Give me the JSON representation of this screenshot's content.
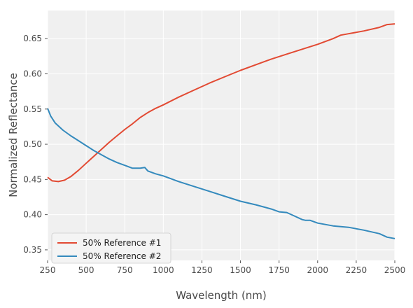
{
  "chart_data": {
    "type": "line",
    "title": "",
    "xlabel": "Wavelength (nm)",
    "ylabel": "Normalized Reflectance",
    "xlim": [
      250,
      2500
    ],
    "ylim": [
      0.335,
      0.69
    ],
    "xticks": [
      250,
      500,
      750,
      1000,
      1250,
      1500,
      1750,
      2000,
      2250,
      2500
    ],
    "yticks": [
      0.35,
      0.4,
      0.45,
      0.5,
      0.55,
      0.6,
      0.65
    ],
    "ytick_labels": [
      "0.35",
      "0.40",
      "0.45",
      "0.50",
      "0.55",
      "0.60",
      "0.65"
    ],
    "grid": true,
    "legend_position": "lower-left",
    "series": [
      {
        "name": "50% Reference #1",
        "color": "#e24a33",
        "x": [
          250,
          280,
          320,
          360,
          400,
          450,
          500,
          550,
          600,
          650,
          700,
          750,
          800,
          850,
          900,
          950,
          1000,
          1100,
          1200,
          1300,
          1400,
          1500,
          1600,
          1700,
          1800,
          1900,
          2000,
          2100,
          2150,
          2200,
          2300,
          2400,
          2450,
          2500
        ],
        "values": [
          0.453,
          0.448,
          0.447,
          0.449,
          0.454,
          0.463,
          0.473,
          0.483,
          0.493,
          0.503,
          0.512,
          0.521,
          0.529,
          0.538,
          0.545,
          0.551,
          0.556,
          0.567,
          0.577,
          0.587,
          0.596,
          0.605,
          0.613,
          0.621,
          0.628,
          0.635,
          0.642,
          0.65,
          0.655,
          0.657,
          0.661,
          0.666,
          0.67,
          0.671
        ]
      },
      {
        "name": "50% Reference #2",
        "color": "#348abd",
        "x": [
          250,
          270,
          300,
          350,
          400,
          450,
          500,
          550,
          600,
          650,
          700,
          750,
          800,
          850,
          880,
          900,
          950,
          1000,
          1100,
          1200,
          1300,
          1400,
          1500,
          1600,
          1700,
          1750,
          1800,
          1850,
          1900,
          1920,
          1950,
          2000,
          2100,
          2200,
          2300,
          2400,
          2450,
          2500
        ],
        "values": [
          0.551,
          0.54,
          0.53,
          0.52,
          0.512,
          0.505,
          0.498,
          0.491,
          0.485,
          0.479,
          0.474,
          0.47,
          0.466,
          0.466,
          0.467,
          0.462,
          0.458,
          0.455,
          0.447,
          0.44,
          0.433,
          0.426,
          0.419,
          0.414,
          0.408,
          0.404,
          0.403,
          0.398,
          0.393,
          0.392,
          0.392,
          0.388,
          0.384,
          0.382,
          0.378,
          0.373,
          0.368,
          0.366
        ]
      }
    ]
  }
}
